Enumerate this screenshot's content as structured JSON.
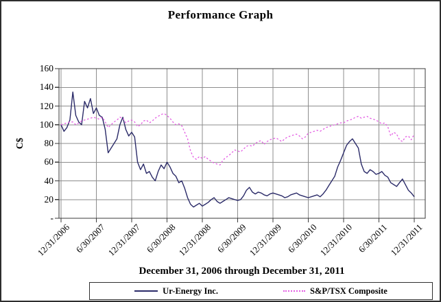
{
  "chart_data": {
    "type": "line",
    "title": "Performance Graph",
    "ylabel": "C$",
    "xlabel": "December 31, 2006 through December 31, 2011",
    "ylim": [
      0,
      160
    ],
    "grid": true,
    "legend_position": "bottom",
    "x_tick_labels": [
      "12/31/2006",
      "6/30/2007",
      "12/31/2007",
      "6/30/2008",
      "12/31/2008",
      "6/30/2009",
      "12/31/2009",
      "6/30/2010",
      "12/31/2010",
      "6/30/2011",
      "12/31/2011"
    ],
    "y_tick_labels": [
      "160",
      "140",
      "120",
      "100",
      "80",
      "60",
      "40",
      "20",
      "-"
    ],
    "x_unit": "months since 12/31/2006",
    "x_step_months": 0.5,
    "series": [
      {
        "name": "Ur-Energy Inc.",
        "color": "#2a2a68",
        "style": "solid",
        "values": [
          100,
          93,
          97,
          105,
          135,
          110,
          103,
          100,
          125,
          118,
          128,
          112,
          118,
          110,
          108,
          95,
          70,
          75,
          80,
          85,
          100,
          108,
          95,
          88,
          92,
          87,
          60,
          52,
          58,
          48,
          50,
          44,
          40,
          50,
          57,
          53,
          60,
          55,
          48,
          45,
          38,
          40,
          32,
          22,
          15,
          12,
          14,
          16,
          13,
          15,
          17,
          20,
          22,
          18,
          16,
          18,
          20,
          22,
          21,
          20,
          19,
          20,
          24,
          30,
          33,
          28,
          26,
          28,
          27,
          25,
          24,
          26,
          27,
          26,
          25,
          24,
          22,
          23,
          25,
          26,
          27,
          25,
          24,
          23,
          22,
          23,
          24,
          25,
          23,
          26,
          30,
          35,
          40,
          45,
          55,
          62,
          70,
          78,
          82,
          85,
          80,
          75,
          58,
          50,
          48,
          52,
          50,
          47,
          48,
          50,
          46,
          44,
          38,
          36,
          34,
          38,
          42,
          36,
          30,
          27,
          23
        ]
      },
      {
        "name": "S&P/TSX Composite",
        "color": "#e35ce3",
        "style": "dashed",
        "values": [
          100,
          101,
          102,
          103,
          103,
          100,
          102,
          104,
          105,
          106,
          107,
          108,
          107,
          106,
          108,
          103,
          97,
          100,
          103,
          105,
          108,
          107,
          102,
          104,
          105,
          103,
          98,
          100,
          104,
          105,
          102,
          104,
          107,
          109,
          111,
          112,
          110,
          107,
          103,
          100,
          101,
          99,
          92,
          85,
          72,
          65,
          63,
          66,
          64,
          66,
          63,
          61,
          59,
          58,
          57,
          62,
          65,
          67,
          70,
          73,
          72,
          71,
          74,
          77,
          78,
          77,
          80,
          82,
          83,
          79,
          82,
          84,
          85,
          86,
          84,
          82,
          85,
          87,
          88,
          89,
          90,
          88,
          85,
          87,
          91,
          92,
          93,
          94,
          93,
          95,
          97,
          98,
          99,
          100,
          101,
          102,
          102,
          104,
          105,
          106,
          108,
          109,
          107,
          108,
          109,
          107,
          106,
          105,
          103,
          101,
          102,
          98,
          88,
          92,
          90,
          84,
          82,
          87,
          88,
          84,
          90
        ]
      }
    ],
    "colors": {
      "gridline": "#8c8c8c",
      "frame": "#3a3a3a",
      "background": "#ffffff"
    }
  }
}
